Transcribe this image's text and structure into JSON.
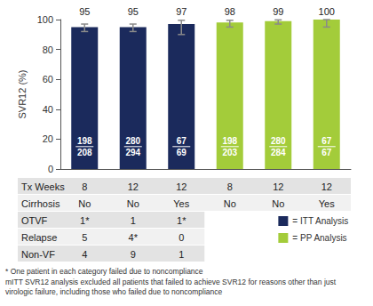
{
  "chart_data": {
    "type": "bar",
    "y_label": "SVR12 (%)",
    "categories": [
      null,
      null,
      null,
      null,
      null,
      null
    ],
    "ylim": [
      0,
      100
    ],
    "yticks": [
      0,
      20,
      40,
      60,
      80,
      100
    ],
    "grid": false,
    "data_labels": true,
    "legend": "bottom right",
    "series": [
      {
        "name": "= ITT Analysis",
        "color": "#1b2a5c",
        "values": [
          95,
          95,
          97,
          null,
          null,
          null
        ],
        "error_low": [
          92,
          92,
          90,
          null,
          null,
          null
        ],
        "error_high": [
          97,
          97,
          99.5,
          null,
          null,
          null
        ],
        "fractions": [
          {
            "numerator": 198,
            "denominator": 208
          },
          {
            "numerator": 280,
            "denominator": 294
          },
          {
            "numerator": 67,
            "denominator": 69
          },
          null,
          null,
          null
        ]
      },
      {
        "name": "= PP Analysis",
        "color": "#a3cc3a",
        "values": [
          null,
          null,
          null,
          98,
          99,
          100
        ],
        "error_low": [
          null,
          null,
          null,
          95,
          97,
          95
        ],
        "error_high": [
          null,
          null,
          null,
          99.5,
          99.8,
          100
        ],
        "fractions": [
          null,
          null,
          null,
          {
            "numerator": 198,
            "denominator": 203
          },
          {
            "numerator": 280,
            "denominator": 284
          },
          {
            "numerator": 67,
            "denominator": 67
          }
        ]
      }
    ],
    "table": {
      "rows": [
        {
          "label": "Tx Weeks",
          "cells": [
            "8",
            "12",
            "12",
            "8",
            "12",
            "12"
          ]
        },
        {
          "label": "Cirrhosis",
          "cells": [
            "No",
            "No",
            "Yes",
            "No",
            "No",
            "Yes"
          ]
        },
        {
          "label": "OTVF",
          "cells": [
            "1*",
            "1",
            "1*"
          ]
        },
        {
          "label": "Relapse",
          "cells": [
            "5",
            "4*",
            "0"
          ]
        },
        {
          "label": "Non-VF",
          "cells": [
            "4",
            "9",
            "1"
          ]
        }
      ]
    },
    "footnotes": [
      "* One patient in each category failed due to noncompliance",
      "mITT SVR12 analysis excluded all patients that failed to achieve SVR12 for reasons other than just virologic failure, including those who failed due to noncompliance"
    ]
  }
}
